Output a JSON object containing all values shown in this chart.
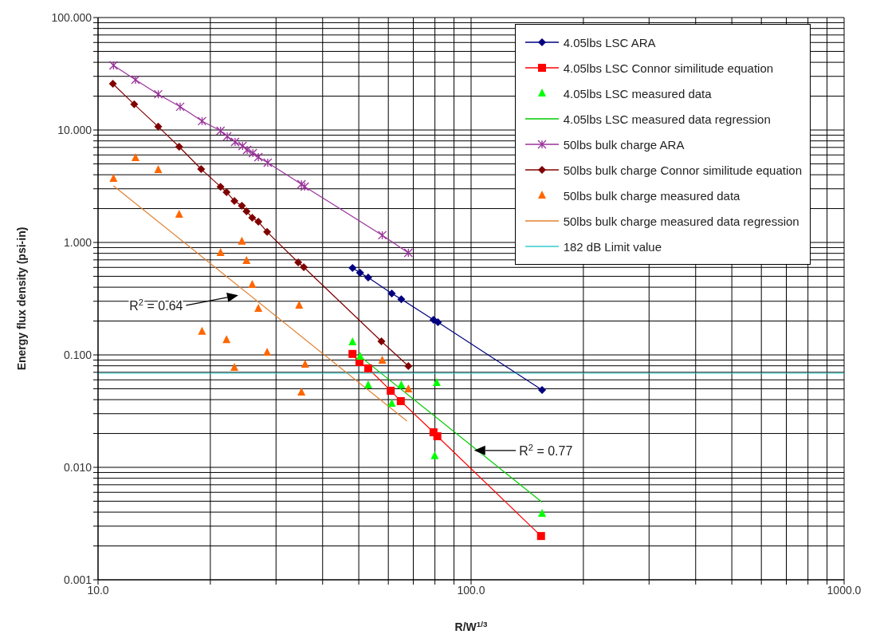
{
  "chart_data": {
    "type": "scatter",
    "xlabel": "R/W$^{1/3}$",
    "ylabel": "Energy flux density (psi-in)",
    "log": "xy",
    "grid": true,
    "legend": "top right",
    "xlim": [
      10,
      1000
    ],
    "xticks": [
      {
        "value": 10,
        "label": "10.0"
      },
      {
        "value": 20,
        "label": null
      },
      {
        "value": 30,
        "label": null
      },
      {
        "value": 40,
        "label": null
      },
      {
        "value": 50,
        "label": null
      },
      {
        "value": 60,
        "label": null
      },
      {
        "value": 70,
        "label": null
      },
      {
        "value": 80,
        "label": null
      },
      {
        "value": 90,
        "label": null
      },
      {
        "value": 100,
        "label": "100.0"
      },
      {
        "value": 200,
        "label": null
      },
      {
        "value": 300,
        "label": null
      },
      {
        "value": 400,
        "label": null
      },
      {
        "value": 500,
        "label": null
      },
      {
        "value": 600,
        "label": null
      },
      {
        "value": 700,
        "label": null
      },
      {
        "value": 800,
        "label": null
      },
      {
        "value": 900,
        "label": null
      },
      {
        "value": 1000,
        "label": "1000.0"
      }
    ],
    "ylim": [
      0.001,
      100
    ],
    "yticks": [
      {
        "value": 0.001,
        "label": "0.001"
      },
      {
        "value": 0.002,
        "label": null
      },
      {
        "value": 0.003,
        "label": null
      },
      {
        "value": 0.004,
        "label": null
      },
      {
        "value": 0.005,
        "label": null
      },
      {
        "value": 0.006,
        "label": null
      },
      {
        "value": 0.007,
        "label": null
      },
      {
        "value": 0.008,
        "label": null
      },
      {
        "value": 0.009,
        "label": null
      },
      {
        "value": 0.01,
        "label": "0.010"
      },
      {
        "value": 0.02,
        "label": null
      },
      {
        "value": 0.03,
        "label": null
      },
      {
        "value": 0.04,
        "label": null
      },
      {
        "value": 0.05,
        "label": null
      },
      {
        "value": 0.06,
        "label": null
      },
      {
        "value": 0.07,
        "label": null
      },
      {
        "value": 0.08,
        "label": null
      },
      {
        "value": 0.09,
        "label": null
      },
      {
        "value": 0.1,
        "label": "0.100"
      },
      {
        "value": 0.2,
        "label": null
      },
      {
        "value": 0.3,
        "label": null
      },
      {
        "value": 0.4,
        "label": null
      },
      {
        "value": 0.5,
        "label": null
      },
      {
        "value": 0.6,
        "label": null
      },
      {
        "value": 0.7,
        "label": null
      },
      {
        "value": 0.8,
        "label": null
      },
      {
        "value": 0.9,
        "label": null
      },
      {
        "value": 1,
        "label": "1.000"
      },
      {
        "value": 2,
        "label": null
      },
      {
        "value": 3,
        "label": null
      },
      {
        "value": 4,
        "label": null
      },
      {
        "value": 5,
        "label": null
      },
      {
        "value": 6,
        "label": null
      },
      {
        "value": 7,
        "label": null
      },
      {
        "value": 8,
        "label": null
      },
      {
        "value": 9,
        "label": null
      },
      {
        "value": 10,
        "label": "10.000"
      },
      {
        "value": 20,
        "label": null
      },
      {
        "value": 30,
        "label": null
      },
      {
        "value": 40,
        "label": null
      },
      {
        "value": 50,
        "label": null
      },
      {
        "value": 60,
        "label": null
      },
      {
        "value": 70,
        "label": null
      },
      {
        "value": 80,
        "label": null
      },
      {
        "value": 90,
        "label": null
      },
      {
        "value": 100,
        "label": "100.000"
      }
    ],
    "series": [
      {
        "name": "4.05lbs LSC ARA",
        "type": "line",
        "marker": "diamond",
        "color": "#000080",
        "x": [
          48.1,
          50.4,
          53.0,
          61.3,
          65.0,
          79.3,
          81.5,
          155
        ],
        "values": [
          0.593,
          0.537,
          0.488,
          0.352,
          0.313,
          0.205,
          0.195,
          0.0488
        ]
      },
      {
        "name": "4.05lbs LSC Connor similitude equation",
        "type": "line",
        "marker": "square",
        "color": "#ff0000",
        "x": [
          48.1,
          50.2,
          53.0,
          60.9,
          64.8,
          79.3,
          81.2,
          154
        ],
        "values": [
          0.102,
          0.0863,
          0.0757,
          0.048,
          0.0388,
          0.0205,
          0.0189,
          0.00245
        ]
      },
      {
        "name": "4.05lbs LSC measured data",
        "marker": "triangle",
        "color": "#00ff00",
        "x": [
          48.1,
          50.4,
          53.0,
          61.3,
          65.0,
          79.9,
          80.9,
          155
        ],
        "values": [
          0.13,
          0.0968,
          0.0537,
          0.0369,
          0.0537,
          0.0126,
          0.0565,
          0.00388
        ]
      },
      {
        "name": "4.05lbs LSC measured data regression",
        "type": "line",
        "marker": "none",
        "color": "#00cc00",
        "x": [
          50.4,
          155
        ],
        "values": [
          0.097,
          0.0049
        ]
      },
      {
        "name": "50lbs bulk charge ARA",
        "type": "line",
        "marker": "cross",
        "color": "#993399",
        "x": [
          11.0,
          12.6,
          14.5,
          16.6,
          19.0,
          21.3,
          22.2,
          23.3,
          24.4,
          25.1,
          26.0,
          26.9,
          28.5,
          35.1,
          35.8,
          57.8,
          67.9
        ],
        "values": [
          37.5,
          28.0,
          20.8,
          16.1,
          12.0,
          9.84,
          8.78,
          7.83,
          7.21,
          6.65,
          6.23,
          5.74,
          5.12,
          3.29,
          3.14,
          1.16,
          0.809
        ]
      },
      {
        "name": "50lbs bulk charge Connor similitude equation",
        "type": "line",
        "marker": "diamond",
        "color": "#800000",
        "x": [
          10.96,
          12.5,
          14.5,
          16.5,
          18.9,
          21.3,
          22.1,
          23.2,
          24.3,
          25.0,
          25.9,
          26.9,
          28.4,
          34.4,
          35.6,
          57.5,
          67.9
        ],
        "values": [
          25.8,
          16.9,
          10.7,
          7.1,
          4.49,
          3.13,
          2.8,
          2.34,
          2.12,
          1.89,
          1.66,
          1.53,
          1.24,
          0.665,
          0.603,
          0.132,
          0.0796
        ]
      },
      {
        "name": "50lbs bulk charge measured data",
        "marker": "triangle",
        "color": "#ff6600",
        "x": [
          11.0,
          12.6,
          14.5,
          16.5,
          19.0,
          21.3,
          22.1,
          23.2,
          24.3,
          25.0,
          25.9,
          26.9,
          28.4,
          34.6,
          35.1,
          35.9,
          57.8,
          67.9
        ],
        "values": [
          3.69,
          5.65,
          4.42,
          1.77,
          0.161,
          0.809,
          0.136,
          0.077,
          1.02,
          0.687,
          0.421,
          0.258,
          0.105,
          0.275,
          0.0464,
          0.0822,
          0.0892,
          0.0496
        ]
      },
      {
        "name": "50lbs bulk charge measured data regression",
        "type": "line",
        "marker": "none",
        "color": "#e08030",
        "x": [
          11.0,
          67.3
        ],
        "values": [
          3.19,
          0.0258
        ]
      },
      {
        "name": "182 dB Limit value",
        "type": "line",
        "marker": "none",
        "color": "#33cccc",
        "x": [
          10,
          1000
        ],
        "values": [
          0.0687,
          0.0687
        ]
      }
    ],
    "annotations": [
      "R$^{2}$ = 0.64",
      "R$^{2}$ = 0.77"
    ]
  }
}
